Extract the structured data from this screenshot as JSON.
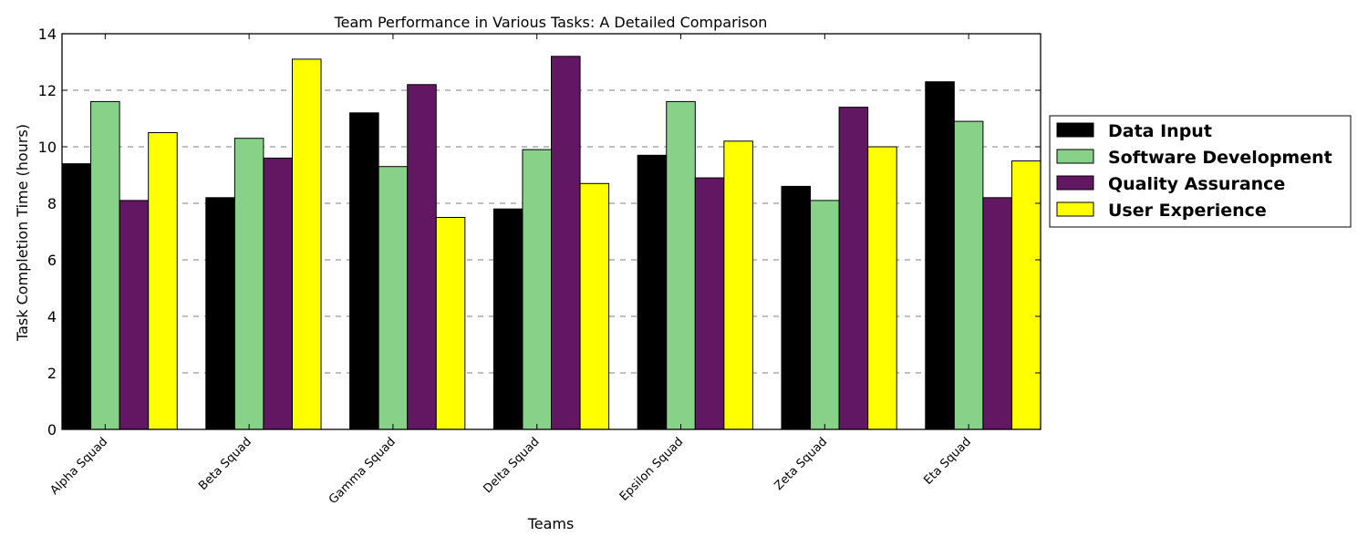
{
  "chart_data": {
    "type": "bar",
    "title": "Team Performance in Various Tasks: A Detailed Comparison",
    "xlabel": "Teams",
    "ylabel": "Task Completion Time (hours)",
    "ylim": [
      0,
      14
    ],
    "yticks": [
      0,
      2,
      4,
      6,
      8,
      10,
      12,
      14
    ],
    "grid": "y-dashed",
    "legend_position": "right",
    "categories": [
      "Alpha Squad",
      "Beta Squad",
      "Gamma Squad",
      "Delta Squad",
      "Epsilon Squad",
      "Zeta Squad",
      "Eta Squad"
    ],
    "series": [
      {
        "name": "Data Input",
        "color": "#000000",
        "values": [
          9.4,
          8.2,
          11.2,
          7.8,
          9.7,
          8.6,
          12.3
        ]
      },
      {
        "name": "Software Development",
        "color": "#88d188",
        "values": [
          11.6,
          10.3,
          9.3,
          9.9,
          11.6,
          8.1,
          10.9
        ]
      },
      {
        "name": "Quality Assurance",
        "color": "#621762",
        "values": [
          8.1,
          9.6,
          12.2,
          13.2,
          8.9,
          11.4,
          8.2
        ]
      },
      {
        "name": "User Experience",
        "color": "#ffff00",
        "values": [
          10.5,
          13.1,
          7.5,
          8.7,
          10.2,
          10.0,
          9.5
        ]
      }
    ]
  }
}
